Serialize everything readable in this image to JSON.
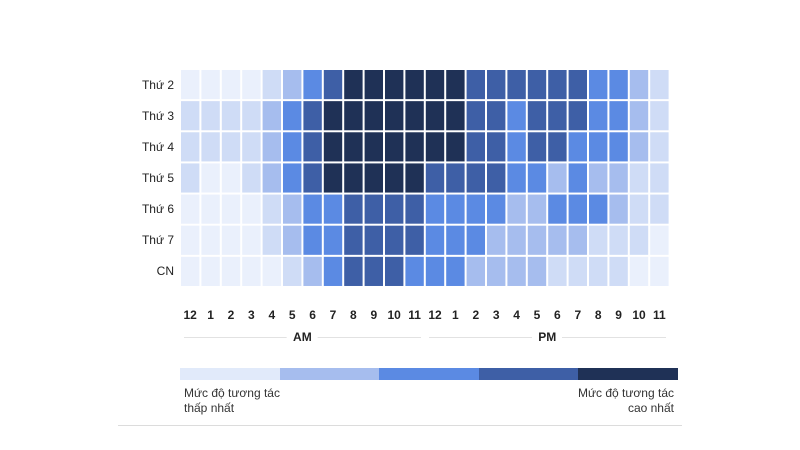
{
  "chart_data": {
    "type": "heatmap",
    "title": "",
    "rows": [
      "Thứ 2",
      "Thứ 3",
      "Thứ 4",
      "Thứ 5",
      "Thứ 6",
      "Thứ 7",
      "CN"
    ],
    "columns": [
      "12",
      "1",
      "2",
      "3",
      "4",
      "5",
      "6",
      "7",
      "8",
      "9",
      "10",
      "11",
      "12",
      "1",
      "2",
      "3",
      "4",
      "5",
      "6",
      "7",
      "8",
      "9",
      "10",
      "11"
    ],
    "periods": [
      {
        "label": "AM",
        "start": 0,
        "end": 11
      },
      {
        "label": "PM",
        "start": 12,
        "end": 23
      }
    ],
    "value_range": [
      0,
      5
    ],
    "values": [
      [
        0,
        0,
        0,
        0,
        1,
        2,
        3,
        4,
        5,
        5,
        5,
        5,
        5,
        5,
        4,
        4,
        4,
        4,
        4,
        4,
        3,
        3,
        2,
        1
      ],
      [
        1,
        1,
        1,
        1,
        2,
        3,
        4,
        5,
        5,
        5,
        5,
        5,
        5,
        5,
        4,
        4,
        3,
        4,
        4,
        4,
        3,
        3,
        2,
        1
      ],
      [
        1,
        1,
        1,
        1,
        2,
        3,
        4,
        5,
        5,
        5,
        5,
        5,
        5,
        5,
        4,
        4,
        3,
        4,
        4,
        3,
        3,
        3,
        2,
        1
      ],
      [
        1,
        0,
        0,
        1,
        2,
        3,
        4,
        5,
        5,
        5,
        5,
        5,
        4,
        4,
        4,
        4,
        3,
        3,
        2,
        3,
        2,
        2,
        1,
        1
      ],
      [
        0,
        0,
        0,
        0,
        1,
        2,
        3,
        3,
        4,
        4,
        4,
        4,
        3,
        3,
        3,
        3,
        2,
        2,
        3,
        3,
        3,
        2,
        1,
        1
      ],
      [
        0,
        0,
        0,
        0,
        1,
        2,
        3,
        3,
        4,
        4,
        4,
        4,
        3,
        3,
        3,
        2,
        2,
        2,
        2,
        2,
        1,
        1,
        1,
        0
      ],
      [
        0,
        0,
        0,
        0,
        0,
        1,
        2,
        3,
        4,
        4,
        4,
        3,
        3,
        3,
        2,
        2,
        2,
        2,
        1,
        1,
        1,
        1,
        0,
        0
      ]
    ],
    "color_scale": [
      "#eaf0fc",
      "#cfdcf6",
      "#a6bdee",
      "#5b8ae3",
      "#3e5fa6",
      "#1f3156"
    ],
    "legend": {
      "colors": [
        "#e1eafa",
        "#a6bdee",
        "#5b8ae3",
        "#3e5fa6",
        "#1f3156"
      ],
      "low_label": "Mức độ tương tác thấp nhất",
      "high_label": "Mức độ tương tác cao nhất"
    }
  }
}
